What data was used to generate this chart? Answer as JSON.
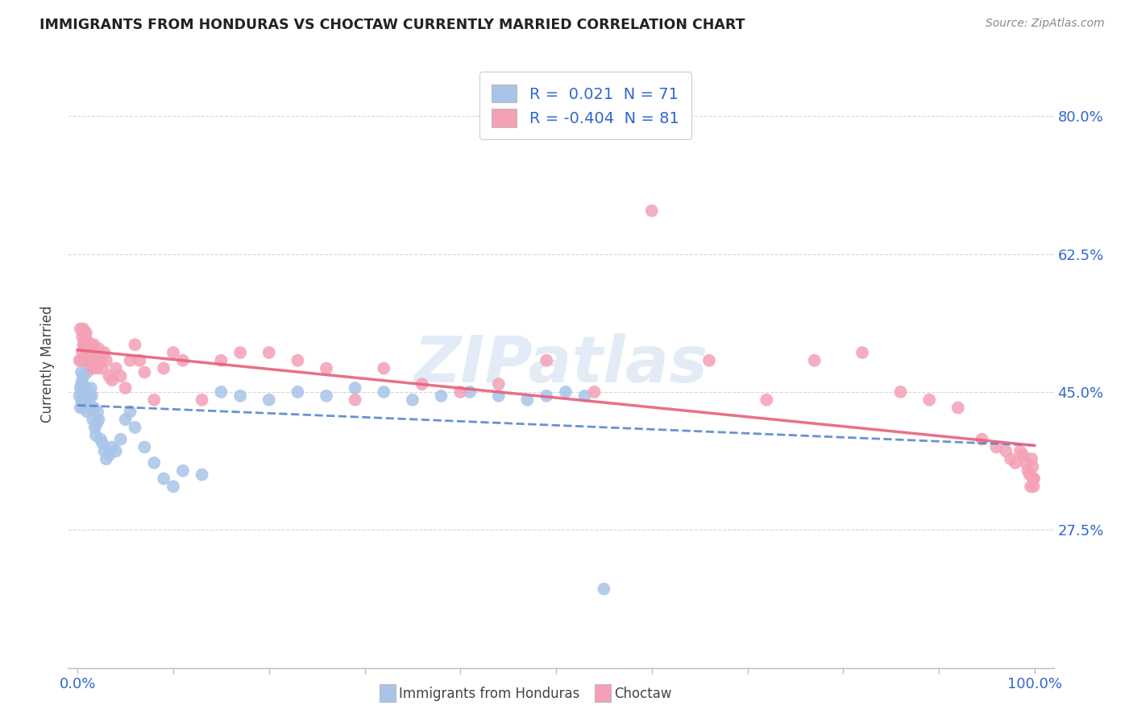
{
  "title": "IMMIGRANTS FROM HONDURAS VS CHOCTAW CURRENTLY MARRIED CORRELATION CHART",
  "source": "Source: ZipAtlas.com",
  "ylabel": "Currently Married",
  "yticks": [
    "27.5%",
    "45.0%",
    "62.5%",
    "80.0%"
  ],
  "ytick_vals": [
    0.275,
    0.45,
    0.625,
    0.8
  ],
  "legend_1_r": "0.021",
  "legend_1_n": "71",
  "legend_2_r": "-0.404",
  "legend_2_n": "81",
  "color_blue": "#a8c4e8",
  "color_pink": "#f4a0b5",
  "line_blue": "#5588cc",
  "line_pink": "#e8607a",
  "watermark": "ZIPatlas",
  "blue_x": [
    0.002,
    0.003,
    0.003,
    0.004,
    0.004,
    0.004,
    0.005,
    0.005,
    0.005,
    0.006,
    0.006,
    0.006,
    0.007,
    0.007,
    0.007,
    0.008,
    0.008,
    0.009,
    0.009,
    0.01,
    0.01,
    0.01,
    0.011,
    0.011,
    0.012,
    0.012,
    0.013,
    0.013,
    0.014,
    0.015,
    0.015,
    0.016,
    0.017,
    0.018,
    0.019,
    0.02,
    0.021,
    0.022,
    0.024,
    0.026,
    0.028,
    0.03,
    0.033,
    0.036,
    0.04,
    0.045,
    0.05,
    0.055,
    0.06,
    0.07,
    0.08,
    0.09,
    0.1,
    0.11,
    0.13,
    0.15,
    0.17,
    0.2,
    0.23,
    0.26,
    0.29,
    0.32,
    0.35,
    0.38,
    0.41,
    0.44,
    0.47,
    0.49,
    0.51,
    0.53,
    0.55
  ],
  "blue_y": [
    0.445,
    0.43,
    0.455,
    0.44,
    0.46,
    0.475,
    0.435,
    0.45,
    0.465,
    0.43,
    0.45,
    0.47,
    0.445,
    0.51,
    0.525,
    0.44,
    0.505,
    0.435,
    0.455,
    0.425,
    0.445,
    0.475,
    0.44,
    0.505,
    0.435,
    0.49,
    0.445,
    0.51,
    0.455,
    0.43,
    0.445,
    0.415,
    0.43,
    0.405,
    0.395,
    0.41,
    0.425,
    0.415,
    0.39,
    0.385,
    0.375,
    0.365,
    0.37,
    0.38,
    0.375,
    0.39,
    0.415,
    0.425,
    0.405,
    0.38,
    0.36,
    0.34,
    0.33,
    0.35,
    0.345,
    0.45,
    0.445,
    0.44,
    0.45,
    0.445,
    0.455,
    0.45,
    0.44,
    0.445,
    0.45,
    0.445,
    0.44,
    0.445,
    0.45,
    0.445,
    0.2
  ],
  "pink_x": [
    0.002,
    0.003,
    0.004,
    0.005,
    0.005,
    0.006,
    0.006,
    0.007,
    0.007,
    0.008,
    0.008,
    0.009,
    0.009,
    0.01,
    0.01,
    0.011,
    0.012,
    0.013,
    0.014,
    0.015,
    0.016,
    0.017,
    0.018,
    0.02,
    0.022,
    0.024,
    0.026,
    0.028,
    0.03,
    0.033,
    0.036,
    0.04,
    0.045,
    0.05,
    0.055,
    0.06,
    0.065,
    0.07,
    0.08,
    0.09,
    0.1,
    0.11,
    0.13,
    0.15,
    0.17,
    0.2,
    0.23,
    0.26,
    0.29,
    0.32,
    0.36,
    0.4,
    0.44,
    0.49,
    0.54,
    0.6,
    0.66,
    0.72,
    0.77,
    0.82,
    0.86,
    0.89,
    0.92,
    0.945,
    0.96,
    0.97,
    0.975,
    0.98,
    0.985,
    0.988,
    0.991,
    0.993,
    0.995,
    0.996,
    0.997,
    0.998,
    0.999,
    0.999,
    0.999,
    0.999,
    0.999
  ],
  "pink_y": [
    0.49,
    0.53,
    0.49,
    0.52,
    0.5,
    0.51,
    0.53,
    0.495,
    0.515,
    0.505,
    0.49,
    0.525,
    0.505,
    0.5,
    0.515,
    0.49,
    0.51,
    0.495,
    0.51,
    0.48,
    0.505,
    0.51,
    0.49,
    0.48,
    0.505,
    0.49,
    0.48,
    0.5,
    0.49,
    0.47,
    0.465,
    0.48,
    0.47,
    0.455,
    0.49,
    0.51,
    0.49,
    0.475,
    0.44,
    0.48,
    0.5,
    0.49,
    0.44,
    0.49,
    0.5,
    0.5,
    0.49,
    0.48,
    0.44,
    0.48,
    0.46,
    0.45,
    0.46,
    0.49,
    0.45,
    0.68,
    0.49,
    0.44,
    0.49,
    0.5,
    0.45,
    0.44,
    0.43,
    0.39,
    0.38,
    0.375,
    0.365,
    0.36,
    0.375,
    0.37,
    0.36,
    0.35,
    0.345,
    0.33,
    0.365,
    0.355,
    0.34,
    0.34,
    0.34,
    0.34,
    0.33
  ]
}
